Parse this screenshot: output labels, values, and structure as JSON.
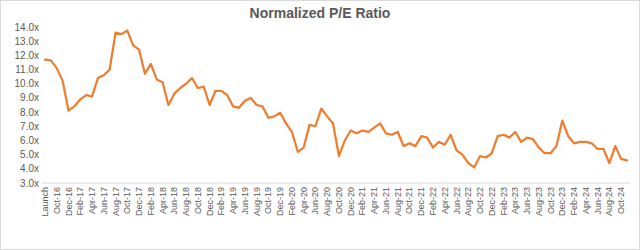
{
  "chart_data": {
    "type": "line",
    "title": "Normalized P/E Ratio",
    "color": "#ed7d31",
    "grid": false,
    "categories": [
      "Launch",
      null,
      "Oct-16",
      null,
      "Dec-16",
      null,
      "Feb-17",
      null,
      "Apr-17",
      null,
      "Jun-17",
      null,
      "Aug-17",
      null,
      "Oct-17",
      null,
      "Dec-17",
      null,
      "Feb-18",
      null,
      "Apr-18",
      null,
      "Jun-18",
      null,
      "Aug-18",
      null,
      "Oct-18",
      null,
      "Dec-18",
      null,
      "Feb-19",
      null,
      "Apr-19",
      null,
      "Jun-19",
      null,
      "Aug-19",
      null,
      "Oct-19",
      null,
      "Dec-19",
      null,
      "Feb-20",
      null,
      "Apr-20",
      null,
      "Jun-20",
      null,
      "Aug-20",
      null,
      "Oct-20",
      null,
      "Dec-20",
      null,
      "Feb-21",
      null,
      "Apr-21",
      null,
      "Jun-21",
      null,
      "Aug-21",
      null,
      "Oct-21",
      null,
      "Dec-21",
      null,
      "Feb-22",
      null,
      "Apr-22",
      null,
      "Jun-22",
      null,
      "Aug-22",
      null,
      "Oct-22",
      null,
      "Dec-22",
      null,
      "Feb-23",
      null,
      "Apr-23",
      null,
      "Jun-23",
      null,
      "Aug-23",
      null,
      "Oct-23",
      null,
      "Dec-23",
      null,
      "Feb-24",
      null,
      "Apr-24",
      null,
      "Jun-24",
      null,
      "Aug-24",
      null,
      "Oct-24",
      null
    ],
    "values": [
      11.7,
      11.65,
      11.1,
      10.2,
      8.1,
      8.4,
      8.9,
      9.2,
      9.1,
      10.4,
      10.6,
      11.0,
      13.6,
      13.5,
      13.75,
      12.7,
      12.4,
      10.7,
      11.4,
      10.3,
      10.1,
      8.5,
      9.3,
      9.7,
      10.0,
      10.4,
      9.7,
      9.8,
      8.5,
      9.5,
      9.5,
      9.2,
      8.4,
      8.3,
      8.8,
      9.0,
      8.5,
      8.4,
      7.6,
      7.7,
      7.95,
      7.2,
      6.6,
      5.2,
      5.5,
      7.1,
      7.0,
      8.25,
      7.7,
      7.2,
      4.9,
      6.0,
      6.7,
      6.5,
      6.7,
      6.6,
      6.9,
      7.2,
      6.5,
      6.4,
      6.6,
      5.6,
      5.8,
      5.6,
      6.3,
      6.2,
      5.5,
      5.9,
      5.7,
      6.4,
      5.3,
      5.0,
      4.4,
      4.1,
      4.9,
      4.8,
      5.1,
      6.3,
      6.4,
      6.2,
      6.6,
      5.9,
      6.2,
      6.1,
      5.5,
      5.1,
      5.1,
      5.6,
      7.4,
      6.3,
      5.8,
      5.9,
      5.9,
      5.8,
      5.4,
      5.4,
      4.4,
      5.6,
      4.7,
      4.6
    ],
    "ylim": [
      3,
      14
    ],
    "yticks": [
      {
        "value": 3,
        "label": "3.0x"
      },
      {
        "value": 4,
        "label": "4.0x"
      },
      {
        "value": 5,
        "label": "5.0x"
      },
      {
        "value": 6,
        "label": "6.0x"
      },
      {
        "value": 7,
        "label": "7.0x"
      },
      {
        "value": 8,
        "label": "8.0x"
      },
      {
        "value": 9,
        "label": "9.0x"
      },
      {
        "value": 10,
        "label": "10.0x"
      },
      {
        "value": 11,
        "label": "11.0x"
      },
      {
        "value": 12,
        "label": "12.0x"
      },
      {
        "value": 13,
        "label": "13.0x"
      },
      {
        "value": 14,
        "label": "14.0x"
      }
    ]
  }
}
